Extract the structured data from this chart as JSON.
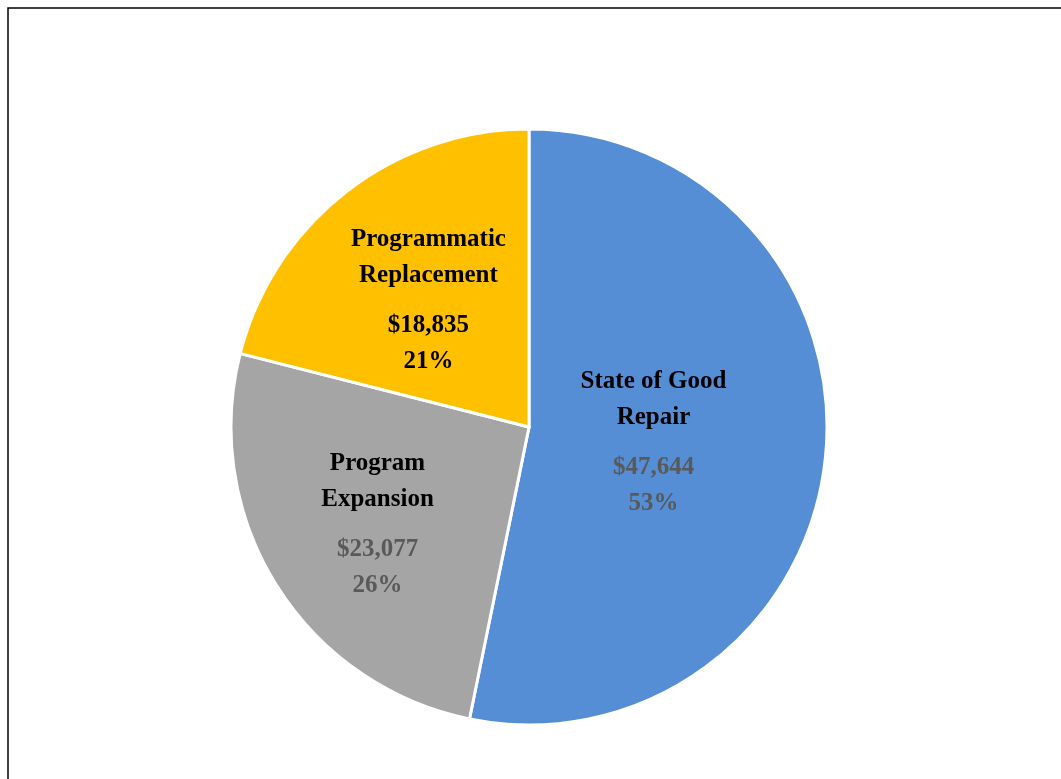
{
  "chart_data": {
    "type": "pie",
    "categories": [
      "State of Good Repair",
      "Program Expansion",
      "Programmatic Replacement"
    ],
    "values": [
      47644,
      23077,
      18835
    ],
    "colors": [
      "#558ed5",
      "#a5a5a5",
      "#ffc000"
    ],
    "value_labels": [
      "$47,644\n53%",
      "$23,077\n26%",
      "$18,835\n21%"
    ]
  }
}
